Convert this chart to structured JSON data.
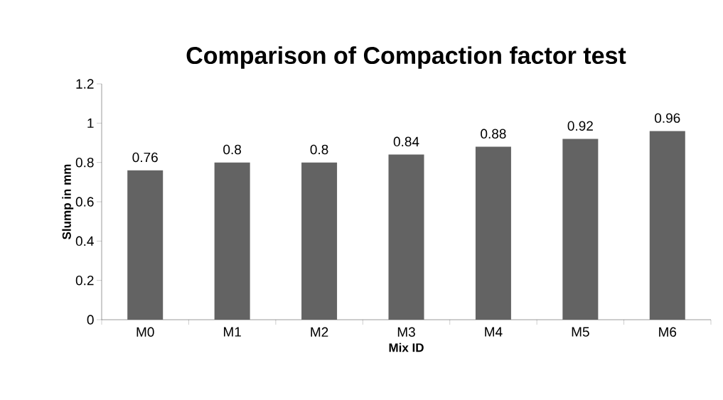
{
  "chart_data": {
    "type": "bar",
    "title": "Comparison of Compaction factor test",
    "xlabel": "Mix ID",
    "ylabel": "Slump in mm",
    "categories": [
      "M0",
      "M1",
      "M2",
      "M3",
      "M4",
      "M5",
      "M6"
    ],
    "values": [
      0.76,
      0.8,
      0.8,
      0.84,
      0.88,
      0.92,
      0.96
    ],
    "color": "#636363",
    "ylim": [
      0,
      1.2
    ],
    "yticks": [
      0,
      0.2,
      0.4,
      0.6,
      0.8,
      1,
      1.2
    ],
    "data_labels": true
  }
}
